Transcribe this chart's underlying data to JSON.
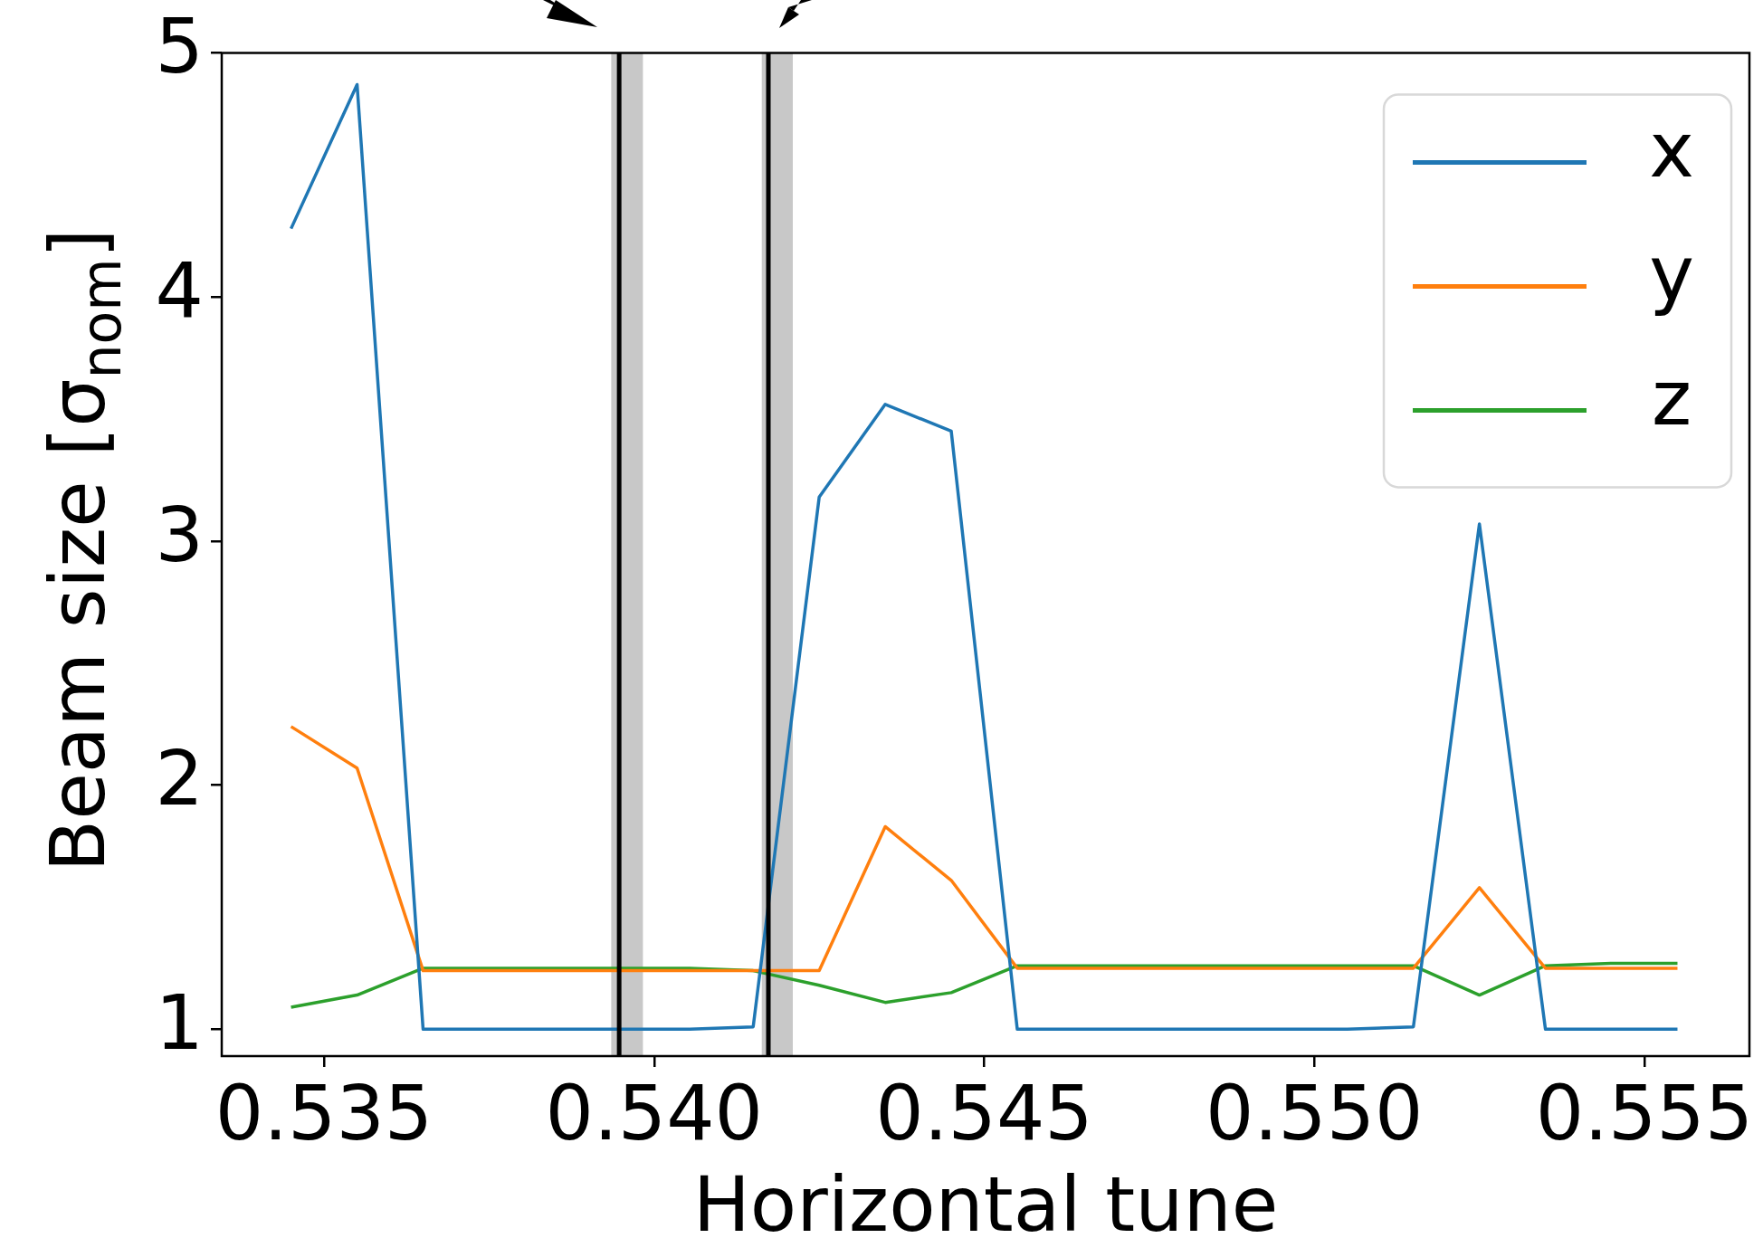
{
  "chart_data": {
    "type": "line",
    "xlabel": "Horizontal tune",
    "ylabel": "Beam size [σ$_{nom}$]",
    "x": [
      0.5345,
      0.5355,
      0.5365,
      0.5375,
      0.5385,
      0.5395,
      0.5405,
      0.5415,
      0.5425,
      0.5435,
      0.5445,
      0.5455,
      0.5465,
      0.5475,
      0.5485,
      0.5495,
      0.5505,
      0.5515,
      0.5525,
      0.5535,
      0.5545,
      0.5555
    ],
    "series": [
      {
        "name": "x",
        "color": "#1f77b4",
        "values": [
          4.28,
          4.87,
          1.0,
          1.0,
          1.0,
          1.0,
          1.0,
          1.01,
          3.18,
          3.56,
          3.45,
          1.0,
          1.0,
          1.0,
          1.0,
          1.0,
          1.0,
          1.01,
          3.07,
          1.0,
          1.0,
          1.0
        ]
      },
      {
        "name": "y",
        "color": "#ff7f0e",
        "values": [
          2.24,
          2.07,
          1.24,
          1.24,
          1.24,
          1.24,
          1.24,
          1.24,
          1.24,
          1.83,
          1.61,
          1.25,
          1.25,
          1.25,
          1.25,
          1.25,
          1.25,
          1.25,
          1.58,
          1.25,
          1.25,
          1.25
        ]
      },
      {
        "name": "z",
        "color": "#2ca02c",
        "values": [
          1.09,
          1.14,
          1.25,
          1.25,
          1.25,
          1.25,
          1.25,
          1.24,
          1.18,
          1.11,
          1.15,
          1.26,
          1.26,
          1.26,
          1.26,
          1.26,
          1.26,
          1.26,
          1.14,
          1.26,
          1.27,
          1.27
        ]
      }
    ],
    "xlim": [
      0.53345,
      0.55659
    ],
    "ylim": [
      0.89,
      5
    ],
    "xticks": [
      0.535,
      {
        "value": 0.54,
        "label": "0.540"
      },
      0.545,
      {
        "value": 0.55,
        "label": "0.550"
      },
      0.555
    ],
    "yticks": [
      1,
      2,
      3,
      4,
      5
    ],
    "ref_lines": [
      {
        "axis": "x",
        "value": 0.53947,
        "color": "#000000"
      },
      {
        "axis": "x",
        "value": 0.54173,
        "color": "#000000"
      }
    ],
    "bands": [
      {
        "axis": "x",
        "from": 0.53935,
        "to": 0.53983,
        "color": "#c8c8c8"
      },
      {
        "axis": "x",
        "from": 0.54163,
        "to": 0.5421,
        "color": "#c8c8c8"
      }
    ],
    "grid": false,
    "legend": "top right",
    "marker": "none",
    "line_style": "solid"
  }
}
